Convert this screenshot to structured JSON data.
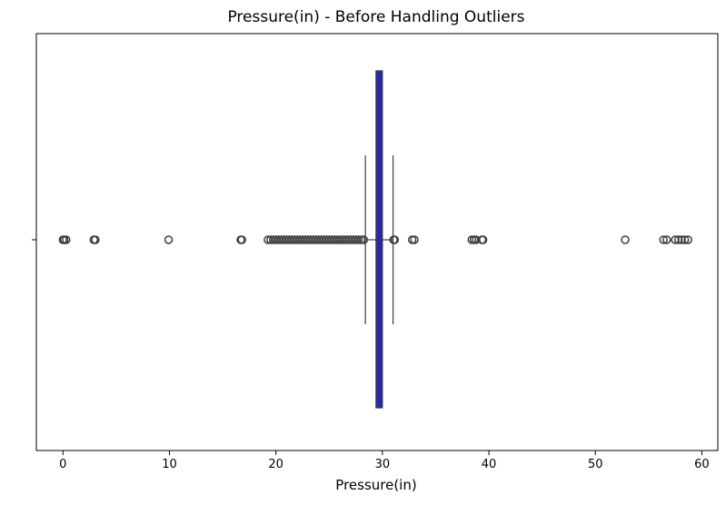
{
  "chart_data": {
    "type": "box",
    "title": "Pressure(in) - Before Handling Outliers",
    "xlabel": "Pressure(in)",
    "ylabel": "",
    "xlim": [
      -2.5,
      61.5
    ],
    "x_ticks": [
      0,
      10,
      20,
      30,
      40,
      50,
      60
    ],
    "x_tick_labels": [
      "0",
      "10",
      "20",
      "30",
      "40",
      "50",
      "60"
    ],
    "y_tick_labels": [
      ""
    ],
    "grid": false,
    "legend": "none",
    "box": {
      "q1": 29.4,
      "median": 29.6,
      "q3": 30.0,
      "whisker_low": 28.4,
      "whisker_high": 31.0
    },
    "outliers": [
      0.0,
      0.12,
      0.3,
      2.9,
      3.04,
      9.92,
      16.7,
      16.8,
      19.25,
      19.5,
      19.75,
      20.0,
      20.25,
      20.5,
      20.75,
      21.0,
      21.25,
      21.5,
      21.75,
      22.0,
      22.25,
      22.5,
      22.75,
      23.0,
      23.25,
      23.5,
      23.75,
      24.0,
      24.25,
      24.5,
      24.75,
      25.0,
      25.25,
      25.5,
      25.75,
      26.0,
      26.25,
      26.5,
      26.75,
      27.0,
      27.25,
      27.5,
      27.75,
      28.0,
      28.25,
      31.05,
      31.15,
      32.8,
      33.0,
      38.4,
      38.6,
      38.8,
      39.35,
      39.45,
      52.8,
      56.4,
      56.7,
      57.5,
      57.8,
      58.1,
      58.4,
      58.7
    ],
    "colors": {
      "box_fill": "#2020d8",
      "box_edge": "#3d3d3d",
      "whisker": "#3d3d3d",
      "outlier_edge": "#3d3d3d",
      "axes": "#000000"
    }
  }
}
